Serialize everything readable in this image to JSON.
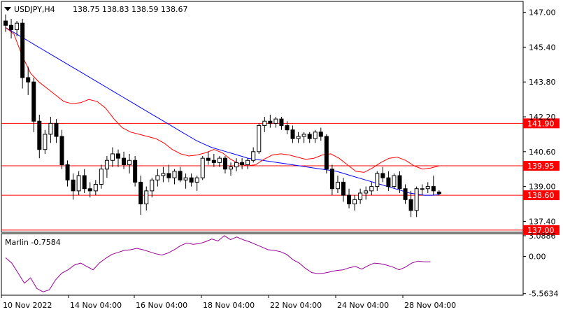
{
  "header": {
    "symbol": "USDJPY,H4",
    "ohlc": "138.75 138.83 138.59 138.67"
  },
  "chart_data": {
    "type": "candlestick",
    "title": "USDJPY,H4",
    "ylim": [
      136.9,
      147.5
    ],
    "y_ticks": [
      "147.00",
      "145.40",
      "143.80",
      "142.20",
      "140.60",
      "139.00",
      "137.40"
    ],
    "x_ticks": [
      "10 Nov 2022",
      "14 Nov 04:00",
      "16 Nov 04:00",
      "18 Nov 04:00",
      "22 Nov 04:00",
      "24 Nov 04:00",
      "28 Nov 04:00"
    ],
    "levels": [
      {
        "label": "141.90",
        "value": 141.9,
        "color": "#ff0000"
      },
      {
        "label": "139.95",
        "value": 139.95,
        "color": "#ff0000"
      },
      {
        "label": "138.60",
        "value": 138.6,
        "color": "#ff0000"
      },
      {
        "label": "137.00",
        "value": 137.0,
        "color": "#ff0000"
      }
    ],
    "candles": [
      [
        146.6,
        146.9,
        146.1,
        146.4
      ],
      [
        146.4,
        146.7,
        145.8,
        146.2
      ],
      [
        146.2,
        146.6,
        145.9,
        146.5
      ],
      [
        146.5,
        146.7,
        143.5,
        144.0
      ],
      [
        144.0,
        144.5,
        143.2,
        143.8
      ],
      [
        143.8,
        144.0,
        141.5,
        142.0
      ],
      [
        142.0,
        142.3,
        140.3,
        140.7
      ],
      [
        140.7,
        141.6,
        140.5,
        141.4
      ],
      [
        141.4,
        142.2,
        141.0,
        141.9
      ],
      [
        141.9,
        142.1,
        141.0,
        141.3
      ],
      [
        141.3,
        141.6,
        139.8,
        140.0
      ],
      [
        140.0,
        140.2,
        139.0,
        139.3
      ],
      [
        139.3,
        139.6,
        138.4,
        138.8
      ],
      [
        138.8,
        139.7,
        138.6,
        139.5
      ],
      [
        139.5,
        139.8,
        138.7,
        138.9
      ],
      [
        138.9,
        139.2,
        138.5,
        138.8
      ],
      [
        138.8,
        139.3,
        138.6,
        139.1
      ],
      [
        139.1,
        140.0,
        138.9,
        139.8
      ],
      [
        139.8,
        140.4,
        139.4,
        140.2
      ],
      [
        140.2,
        140.8,
        139.9,
        140.5
      ],
      [
        140.5,
        140.7,
        139.9,
        140.3
      ],
      [
        140.3,
        140.6,
        139.8,
        140.0
      ],
      [
        140.0,
        140.5,
        139.6,
        140.2
      ],
      [
        140.2,
        140.4,
        139.0,
        139.2
      ],
      [
        139.2,
        139.5,
        137.7,
        138.2
      ],
      [
        138.2,
        139.0,
        137.9,
        138.8
      ],
      [
        138.8,
        139.4,
        138.5,
        139.3
      ],
      [
        139.3,
        139.8,
        139.0,
        139.5
      ],
      [
        139.5,
        139.9,
        139.2,
        139.6
      ],
      [
        139.6,
        140.0,
        139.2,
        139.4
      ],
      [
        139.4,
        139.8,
        139.1,
        139.7
      ],
      [
        139.7,
        139.9,
        139.2,
        139.3
      ],
      [
        139.3,
        139.6,
        138.9,
        139.4
      ],
      [
        139.4,
        139.6,
        139.0,
        139.2
      ],
      [
        139.2,
        139.5,
        138.8,
        139.4
      ],
      [
        139.4,
        140.4,
        139.3,
        140.3
      ],
      [
        140.3,
        140.6,
        140.0,
        140.2
      ],
      [
        140.2,
        140.5,
        139.9,
        140.1
      ],
      [
        140.1,
        140.4,
        139.9,
        140.3
      ],
      [
        140.3,
        140.4,
        139.6,
        139.8
      ],
      [
        139.8,
        140.1,
        139.5,
        139.9
      ],
      [
        139.9,
        140.3,
        139.7,
        140.1
      ],
      [
        140.1,
        140.3,
        139.8,
        140.0
      ],
      [
        140.0,
        140.3,
        139.8,
        140.2
      ],
      [
        140.2,
        140.8,
        140.1,
        140.6
      ],
      [
        140.6,
        141.9,
        140.5,
        141.8
      ],
      [
        141.8,
        142.2,
        141.5,
        142.0
      ],
      [
        142.0,
        142.3,
        141.7,
        141.9
      ],
      [
        141.9,
        142.2,
        141.7,
        142.1
      ],
      [
        142.1,
        142.2,
        141.6,
        141.8
      ],
      [
        141.8,
        142.0,
        141.4,
        141.6
      ],
      [
        141.6,
        141.8,
        141.0,
        141.2
      ],
      [
        141.2,
        141.5,
        141.0,
        141.3
      ],
      [
        141.3,
        141.5,
        141.0,
        141.4
      ],
      [
        141.4,
        141.5,
        141.0,
        141.2
      ],
      [
        141.2,
        141.6,
        141.0,
        141.5
      ],
      [
        141.5,
        141.7,
        141.1,
        141.3
      ],
      [
        141.3,
        141.4,
        139.6,
        139.8
      ],
      [
        139.8,
        140.0,
        138.6,
        138.9
      ],
      [
        138.9,
        139.5,
        138.7,
        139.2
      ],
      [
        139.2,
        139.4,
        138.3,
        138.6
      ],
      [
        138.6,
        138.9,
        138.0,
        138.2
      ],
      [
        138.2,
        138.6,
        137.9,
        138.4
      ],
      [
        138.4,
        138.9,
        138.2,
        138.7
      ],
      [
        138.7,
        139.0,
        138.4,
        138.8
      ],
      [
        138.8,
        139.2,
        138.6,
        139.0
      ],
      [
        139.0,
        139.7,
        138.8,
        139.6
      ],
      [
        139.6,
        139.9,
        139.2,
        139.4
      ],
      [
        139.4,
        139.7,
        138.8,
        139.0
      ],
      [
        139.0,
        139.6,
        138.9,
        139.5
      ],
      [
        139.5,
        139.7,
        138.7,
        138.9
      ],
      [
        138.9,
        139.1,
        138.2,
        138.4
      ],
      [
        138.4,
        138.8,
        137.6,
        137.9
      ],
      [
        137.9,
        139.0,
        137.6,
        138.9
      ],
      [
        138.9,
        139.1,
        138.6,
        138.9
      ],
      [
        138.9,
        139.2,
        138.7,
        139.0
      ],
      [
        139.0,
        139.5,
        138.6,
        138.8
      ],
      [
        138.75,
        138.83,
        138.59,
        138.67
      ]
    ],
    "moving_average_blue": [
      146.3,
      146.1,
      145.9,
      145.7,
      145.5,
      145.3,
      145.1,
      144.9,
      144.7,
      144.5,
      144.3,
      144.1,
      143.9,
      143.7,
      143.5,
      143.3,
      143.1,
      142.9,
      142.7,
      142.5,
      142.3,
      142.1,
      141.9,
      141.7,
      141.5,
      141.3,
      141.1,
      140.95,
      140.8,
      140.7,
      140.6,
      140.5,
      140.4,
      140.3,
      140.25,
      140.2,
      140.15,
      140.1,
      140.05,
      140.0,
      139.95,
      139.9,
      139.85,
      139.8,
      139.75,
      139.7,
      139.6,
      139.5,
      139.4,
      139.3,
      139.2,
      139.1,
      139.0,
      138.9,
      138.8,
      138.7,
      138.65,
      138.6,
      138.6,
      138.62
    ],
    "moving_average_red": [
      146.3,
      146.0,
      145.0,
      144.2,
      143.8,
      143.5,
      143.2,
      142.9,
      142.8,
      142.85,
      143.0,
      142.9,
      142.6,
      142.1,
      141.7,
      141.5,
      141.4,
      141.3,
      141.2,
      141.0,
      140.7,
      140.5,
      140.4,
      140.45,
      140.55,
      140.7,
      140.55,
      140.25,
      140.05,
      139.95,
      140.0,
      140.25,
      140.45,
      140.5,
      140.45,
      140.35,
      140.25,
      140.3,
      140.45,
      140.5,
      140.3,
      140.0,
      139.7,
      139.65,
      139.85,
      140.1,
      140.3,
      140.35,
      140.2,
      139.95,
      139.8,
      139.85,
      139.95
    ]
  },
  "indicator": {
    "name": "Marlin -0.7584",
    "ticks": [
      "3.0886",
      "0.00",
      "-5.5634"
    ],
    "ylim": [
      -5.8,
      3.4
    ],
    "values": [
      -0.2,
      -1.0,
      -2.5,
      -4.0,
      -3.2,
      -4.8,
      -5.3,
      -5.0,
      -3.5,
      -2.5,
      -2.0,
      -1.3,
      -1.0,
      -1.5,
      -2.0,
      -1.0,
      -0.3,
      0.3,
      0.6,
      0.9,
      1.0,
      1.2,
      1.0,
      0.7,
      0.4,
      0.2,
      0.5,
      1.0,
      1.6,
      2.0,
      1.8,
      1.9,
      2.2,
      2.6,
      2.3,
      3.1,
      2.5,
      2.9,
      2.5,
      2.2,
      1.8,
      1.4,
      1.0,
      0.9,
      0.7,
      0.3,
      -0.5,
      -1.0,
      -1.8,
      -2.4,
      -2.6,
      -2.5,
      -2.3,
      -2.1,
      -2.0,
      -1.7,
      -1.5,
      -1.9,
      -1.4,
      -1.0,
      -1.1,
      -1.3,
      -1.6,
      -2.0,
      -1.6,
      -1.0,
      -0.7,
      -0.8,
      -0.8
    ]
  },
  "colors": {
    "bull_candle": "#ffffff",
    "bear_candle": "#000000",
    "ma_blue": "#0000ff",
    "ma_red": "#ff0000",
    "indicator_line": "#990099",
    "level_line": "#ff0000",
    "grid_border": "#000000"
  }
}
